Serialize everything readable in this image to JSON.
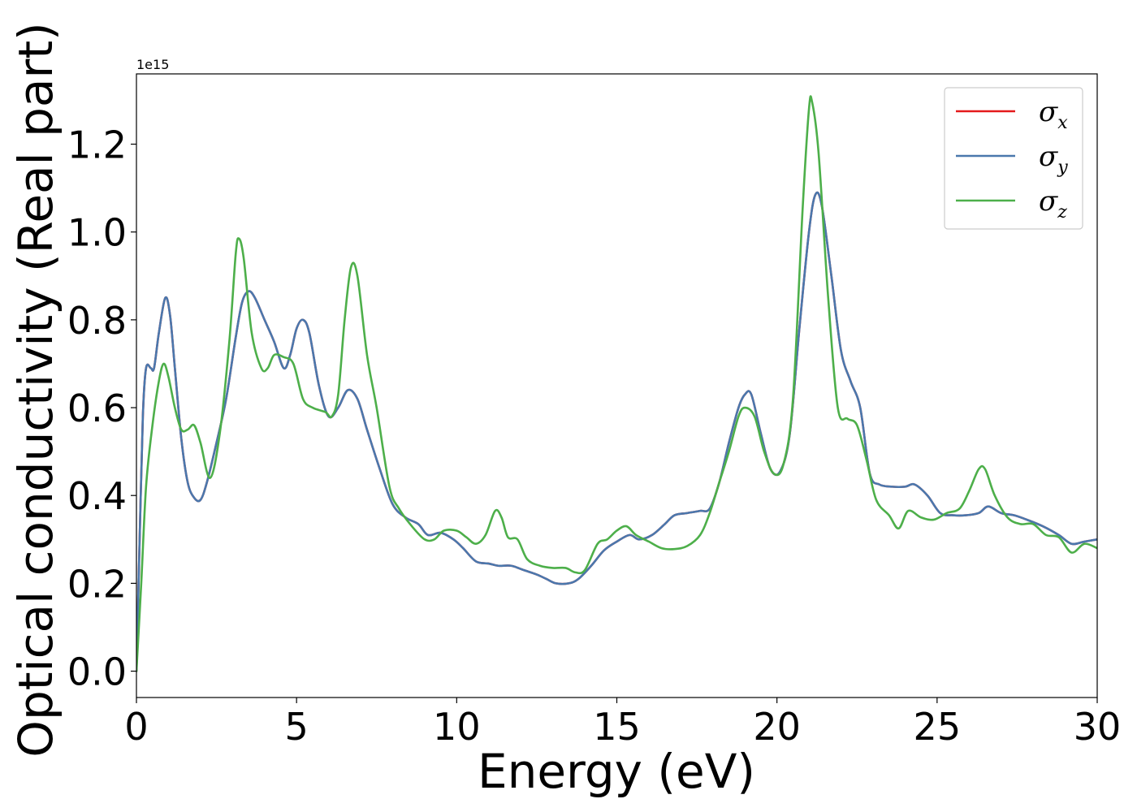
{
  "chart_data": {
    "type": "line",
    "xlabel": "Energy (eV)",
    "ylabel": "Optical conductivity (Real part)",
    "y_scale_note": "1e15",
    "xlim": [
      0,
      30
    ],
    "ylim": [
      -0.06,
      1.36
    ],
    "x_ticks": [
      0,
      5,
      10,
      15,
      20,
      25,
      30
    ],
    "x_tick_labels": [
      "0",
      "5",
      "10",
      "15",
      "20",
      "25",
      "30"
    ],
    "y_ticks": [
      0.0,
      0.2,
      0.4,
      0.6,
      0.8,
      1.0,
      1.2
    ],
    "y_tick_labels": [
      "0.0",
      "0.2",
      "0.4",
      "0.6",
      "0.8",
      "1.0",
      "1.2"
    ],
    "grid": false,
    "legend_position": "top-right",
    "series": [
      {
        "name": "σx",
        "symbol": "σ",
        "subscript": "x",
        "color": "#e41a1c",
        "points": [
          [
            0,
            0.0
          ],
          [
            0.1,
            0.3
          ],
          [
            0.2,
            0.58
          ],
          [
            0.3,
            0.69
          ],
          [
            0.45,
            0.69
          ],
          [
            0.55,
            0.69
          ],
          [
            0.7,
            0.77
          ],
          [
            0.9,
            0.85
          ],
          [
            1.05,
            0.81
          ],
          [
            1.2,
            0.69
          ],
          [
            1.4,
            0.53
          ],
          [
            1.6,
            0.43
          ],
          [
            1.8,
            0.395
          ],
          [
            2.0,
            0.39
          ],
          [
            2.2,
            0.43
          ],
          [
            2.5,
            0.52
          ],
          [
            2.8,
            0.62
          ],
          [
            3.1,
            0.76
          ],
          [
            3.3,
            0.84
          ],
          [
            3.5,
            0.865
          ],
          [
            3.7,
            0.85
          ],
          [
            4.0,
            0.8
          ],
          [
            4.3,
            0.75
          ],
          [
            4.6,
            0.69
          ],
          [
            4.8,
            0.72
          ],
          [
            5.0,
            0.78
          ],
          [
            5.2,
            0.8
          ],
          [
            5.4,
            0.77
          ],
          [
            5.7,
            0.65
          ],
          [
            6.0,
            0.58
          ],
          [
            6.3,
            0.6
          ],
          [
            6.6,
            0.64
          ],
          [
            6.9,
            0.62
          ],
          [
            7.2,
            0.55
          ],
          [
            7.6,
            0.46
          ],
          [
            8.0,
            0.38
          ],
          [
            8.4,
            0.35
          ],
          [
            8.8,
            0.335
          ],
          [
            9.1,
            0.31
          ],
          [
            9.5,
            0.315
          ],
          [
            9.9,
            0.3
          ],
          [
            10.2,
            0.28
          ],
          [
            10.6,
            0.25
          ],
          [
            11.0,
            0.245
          ],
          [
            11.3,
            0.24
          ],
          [
            11.7,
            0.24
          ],
          [
            12.1,
            0.23
          ],
          [
            12.5,
            0.22
          ],
          [
            12.8,
            0.21
          ],
          [
            13.1,
            0.2
          ],
          [
            13.5,
            0.2
          ],
          [
            13.8,
            0.21
          ],
          [
            14.2,
            0.24
          ],
          [
            14.6,
            0.275
          ],
          [
            15.0,
            0.295
          ],
          [
            15.4,
            0.31
          ],
          [
            15.7,
            0.3
          ],
          [
            16.1,
            0.31
          ],
          [
            16.5,
            0.335
          ],
          [
            16.8,
            0.355
          ],
          [
            17.2,
            0.36
          ],
          [
            17.6,
            0.365
          ],
          [
            17.9,
            0.37
          ],
          [
            18.2,
            0.43
          ],
          [
            18.5,
            0.52
          ],
          [
            18.8,
            0.6
          ],
          [
            19.0,
            0.63
          ],
          [
            19.2,
            0.63
          ],
          [
            19.5,
            0.54
          ],
          [
            19.8,
            0.46
          ],
          [
            20.1,
            0.455
          ],
          [
            20.4,
            0.54
          ],
          [
            20.7,
            0.78
          ],
          [
            21.0,
            1.0
          ],
          [
            21.2,
            1.085
          ],
          [
            21.4,
            1.06
          ],
          [
            21.7,
            0.9
          ],
          [
            22.0,
            0.73
          ],
          [
            22.3,
            0.66
          ],
          [
            22.6,
            0.6
          ],
          [
            22.9,
            0.45
          ],
          [
            23.2,
            0.425
          ],
          [
            23.6,
            0.42
          ],
          [
            24.0,
            0.42
          ],
          [
            24.3,
            0.425
          ],
          [
            24.7,
            0.4
          ],
          [
            25.1,
            0.36
          ],
          [
            25.5,
            0.355
          ],
          [
            25.9,
            0.355
          ],
          [
            26.3,
            0.36
          ],
          [
            26.6,
            0.375
          ],
          [
            27.0,
            0.36
          ],
          [
            27.4,
            0.355
          ],
          [
            27.8,
            0.345
          ],
          [
            28.3,
            0.33
          ],
          [
            28.8,
            0.31
          ],
          [
            29.2,
            0.29
          ],
          [
            29.6,
            0.295
          ],
          [
            30.0,
            0.3
          ]
        ]
      },
      {
        "name": "σy",
        "symbol": "σ",
        "subscript": "y",
        "color": "#4a78ad",
        "points": [
          [
            0,
            0.0
          ],
          [
            0.1,
            0.3
          ],
          [
            0.2,
            0.58
          ],
          [
            0.3,
            0.69
          ],
          [
            0.45,
            0.69
          ],
          [
            0.55,
            0.69
          ],
          [
            0.7,
            0.77
          ],
          [
            0.9,
            0.85
          ],
          [
            1.05,
            0.81
          ],
          [
            1.2,
            0.69
          ],
          [
            1.4,
            0.53
          ],
          [
            1.6,
            0.43
          ],
          [
            1.8,
            0.395
          ],
          [
            2.0,
            0.39
          ],
          [
            2.2,
            0.43
          ],
          [
            2.5,
            0.52
          ],
          [
            2.8,
            0.62
          ],
          [
            3.1,
            0.76
          ],
          [
            3.3,
            0.84
          ],
          [
            3.5,
            0.865
          ],
          [
            3.7,
            0.85
          ],
          [
            4.0,
            0.8
          ],
          [
            4.3,
            0.75
          ],
          [
            4.6,
            0.69
          ],
          [
            4.8,
            0.72
          ],
          [
            5.0,
            0.78
          ],
          [
            5.2,
            0.8
          ],
          [
            5.4,
            0.77
          ],
          [
            5.7,
            0.65
          ],
          [
            6.0,
            0.58
          ],
          [
            6.3,
            0.6
          ],
          [
            6.6,
            0.64
          ],
          [
            6.9,
            0.62
          ],
          [
            7.2,
            0.55
          ],
          [
            7.6,
            0.46
          ],
          [
            8.0,
            0.38
          ],
          [
            8.4,
            0.35
          ],
          [
            8.8,
            0.335
          ],
          [
            9.1,
            0.31
          ],
          [
            9.5,
            0.315
          ],
          [
            9.9,
            0.3
          ],
          [
            10.2,
            0.28
          ],
          [
            10.6,
            0.25
          ],
          [
            11.0,
            0.245
          ],
          [
            11.3,
            0.24
          ],
          [
            11.7,
            0.24
          ],
          [
            12.1,
            0.23
          ],
          [
            12.5,
            0.22
          ],
          [
            12.8,
            0.21
          ],
          [
            13.1,
            0.2
          ],
          [
            13.5,
            0.2
          ],
          [
            13.8,
            0.21
          ],
          [
            14.2,
            0.24
          ],
          [
            14.6,
            0.275
          ],
          [
            15.0,
            0.295
          ],
          [
            15.4,
            0.31
          ],
          [
            15.7,
            0.3
          ],
          [
            16.1,
            0.31
          ],
          [
            16.5,
            0.335
          ],
          [
            16.8,
            0.355
          ],
          [
            17.2,
            0.36
          ],
          [
            17.6,
            0.365
          ],
          [
            17.9,
            0.37
          ],
          [
            18.2,
            0.43
          ],
          [
            18.5,
            0.52
          ],
          [
            18.8,
            0.6
          ],
          [
            19.0,
            0.63
          ],
          [
            19.2,
            0.63
          ],
          [
            19.5,
            0.54
          ],
          [
            19.8,
            0.46
          ],
          [
            20.1,
            0.455
          ],
          [
            20.4,
            0.54
          ],
          [
            20.7,
            0.78
          ],
          [
            21.0,
            1.0
          ],
          [
            21.2,
            1.085
          ],
          [
            21.4,
            1.06
          ],
          [
            21.7,
            0.9
          ],
          [
            22.0,
            0.73
          ],
          [
            22.3,
            0.66
          ],
          [
            22.6,
            0.6
          ],
          [
            22.9,
            0.45
          ],
          [
            23.2,
            0.425
          ],
          [
            23.6,
            0.42
          ],
          [
            24.0,
            0.42
          ],
          [
            24.3,
            0.425
          ],
          [
            24.7,
            0.4
          ],
          [
            25.1,
            0.36
          ],
          [
            25.5,
            0.355
          ],
          [
            25.9,
            0.355
          ],
          [
            26.3,
            0.36
          ],
          [
            26.6,
            0.375
          ],
          [
            27.0,
            0.36
          ],
          [
            27.4,
            0.355
          ],
          [
            27.8,
            0.345
          ],
          [
            28.3,
            0.33
          ],
          [
            28.8,
            0.31
          ],
          [
            29.2,
            0.29
          ],
          [
            29.6,
            0.295
          ],
          [
            30.0,
            0.3
          ]
        ]
      },
      {
        "name": "σz",
        "symbol": "σ",
        "subscript": "z",
        "color": "#4daf4a",
        "points": [
          [
            0,
            0.0
          ],
          [
            0.15,
            0.2
          ],
          [
            0.3,
            0.42
          ],
          [
            0.5,
            0.56
          ],
          [
            0.7,
            0.66
          ],
          [
            0.85,
            0.7
          ],
          [
            1.0,
            0.67
          ],
          [
            1.2,
            0.6
          ],
          [
            1.4,
            0.55
          ],
          [
            1.6,
            0.55
          ],
          [
            1.8,
            0.56
          ],
          [
            2.0,
            0.52
          ],
          [
            2.3,
            0.44
          ],
          [
            2.6,
            0.54
          ],
          [
            2.9,
            0.75
          ],
          [
            3.1,
            0.95
          ],
          [
            3.2,
            0.985
          ],
          [
            3.35,
            0.94
          ],
          [
            3.6,
            0.77
          ],
          [
            3.9,
            0.69
          ],
          [
            4.1,
            0.69
          ],
          [
            4.3,
            0.72
          ],
          [
            4.6,
            0.715
          ],
          [
            4.9,
            0.7
          ],
          [
            5.2,
            0.62
          ],
          [
            5.5,
            0.6
          ],
          [
            5.9,
            0.59
          ],
          [
            6.1,
            0.58
          ],
          [
            6.3,
            0.63
          ],
          [
            6.5,
            0.8
          ],
          [
            6.7,
            0.92
          ],
          [
            6.9,
            0.9
          ],
          [
            7.2,
            0.72
          ],
          [
            7.5,
            0.6
          ],
          [
            7.9,
            0.42
          ],
          [
            8.2,
            0.37
          ],
          [
            8.6,
            0.33
          ],
          [
            9.0,
            0.3
          ],
          [
            9.3,
            0.3
          ],
          [
            9.6,
            0.32
          ],
          [
            10.0,
            0.32
          ],
          [
            10.3,
            0.305
          ],
          [
            10.6,
            0.29
          ],
          [
            10.9,
            0.31
          ],
          [
            11.2,
            0.365
          ],
          [
            11.4,
            0.35
          ],
          [
            11.6,
            0.305
          ],
          [
            11.9,
            0.3
          ],
          [
            12.2,
            0.255
          ],
          [
            12.6,
            0.24
          ],
          [
            13.0,
            0.235
          ],
          [
            13.4,
            0.235
          ],
          [
            13.7,
            0.225
          ],
          [
            14.0,
            0.23
          ],
          [
            14.4,
            0.29
          ],
          [
            14.7,
            0.3
          ],
          [
            15.0,
            0.32
          ],
          [
            15.3,
            0.33
          ],
          [
            15.6,
            0.31
          ],
          [
            16.0,
            0.295
          ],
          [
            16.4,
            0.28
          ],
          [
            16.8,
            0.278
          ],
          [
            17.2,
            0.285
          ],
          [
            17.6,
            0.31
          ],
          [
            17.9,
            0.36
          ],
          [
            18.2,
            0.43
          ],
          [
            18.5,
            0.5
          ],
          [
            18.8,
            0.58
          ],
          [
            19.0,
            0.6
          ],
          [
            19.3,
            0.58
          ],
          [
            19.6,
            0.5
          ],
          [
            19.9,
            0.45
          ],
          [
            20.2,
            0.47
          ],
          [
            20.5,
            0.62
          ],
          [
            20.8,
            1.05
          ],
          [
            21.0,
            1.28
          ],
          [
            21.1,
            1.295
          ],
          [
            21.3,
            1.18
          ],
          [
            21.6,
            0.85
          ],
          [
            21.9,
            0.6
          ],
          [
            22.2,
            0.575
          ],
          [
            22.5,
            0.56
          ],
          [
            22.8,
            0.48
          ],
          [
            23.1,
            0.39
          ],
          [
            23.5,
            0.355
          ],
          [
            23.8,
            0.325
          ],
          [
            24.1,
            0.365
          ],
          [
            24.5,
            0.35
          ],
          [
            24.9,
            0.345
          ],
          [
            25.3,
            0.36
          ],
          [
            25.7,
            0.37
          ],
          [
            26.0,
            0.41
          ],
          [
            26.3,
            0.46
          ],
          [
            26.5,
            0.46
          ],
          [
            26.8,
            0.4
          ],
          [
            27.2,
            0.35
          ],
          [
            27.6,
            0.335
          ],
          [
            28.0,
            0.335
          ],
          [
            28.4,
            0.31
          ],
          [
            28.8,
            0.305
          ],
          [
            29.2,
            0.27
          ],
          [
            29.6,
            0.29
          ],
          [
            30.0,
            0.28
          ]
        ]
      }
    ]
  }
}
